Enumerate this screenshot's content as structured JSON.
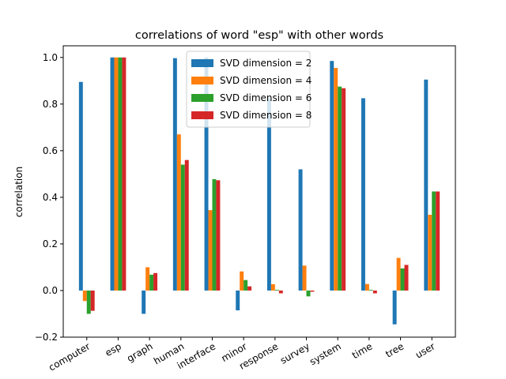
{
  "chart_data": {
    "type": "bar",
    "title": "correlations of word \"esp\" with other words",
    "xlabel": "",
    "ylabel": "correlation",
    "ylim": [
      -0.2,
      1.05
    ],
    "yticks": [
      "−0.2",
      "0.0",
      "0.2",
      "0.4",
      "0.6",
      "0.8",
      "1.0"
    ],
    "ytick_values": [
      -0.2,
      0.0,
      0.2,
      0.4,
      0.6,
      0.8,
      1.0
    ],
    "categories": [
      "computer",
      "esp",
      "graph",
      "human",
      "interface",
      "minor",
      "response",
      "survey",
      "system",
      "time",
      "tree",
      "user"
    ],
    "legend_position": "top-center",
    "grid": false,
    "series": [
      {
        "name": "SVD dimension = 2",
        "color": "#1f77b4",
        "values": [
          0.895,
          1.0,
          -0.1,
          0.997,
          1.0,
          -0.085,
          0.825,
          0.52,
          0.985,
          0.825,
          -0.145,
          0.905
        ]
      },
      {
        "name": "SVD dimension = 4",
        "color": "#ff7f0e",
        "values": [
          -0.045,
          1.0,
          0.1,
          0.67,
          0.345,
          0.082,
          0.027,
          0.107,
          0.955,
          0.028,
          0.14,
          0.325
        ]
      },
      {
        "name": "SVD dimension = 6",
        "color": "#2ca02c",
        "values": [
          -0.1,
          1.0,
          0.068,
          0.54,
          0.478,
          0.045,
          0.003,
          -0.025,
          0.875,
          0.003,
          0.095,
          0.425
        ]
      },
      {
        "name": "SVD dimension = 8",
        "color": "#d62728",
        "values": [
          -0.087,
          1.0,
          0.075,
          0.56,
          0.473,
          0.018,
          -0.012,
          -0.005,
          0.868,
          -0.012,
          0.11,
          0.425
        ]
      }
    ]
  }
}
